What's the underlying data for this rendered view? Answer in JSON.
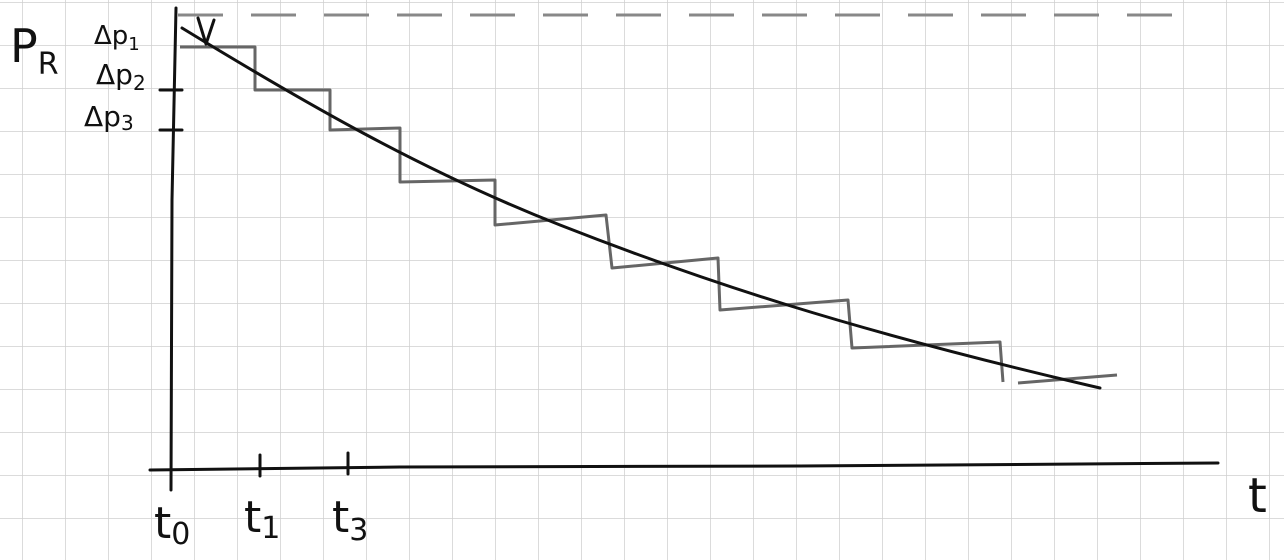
{
  "diagram": {
    "y_axis_label": {
      "main": "P",
      "sub": "R"
    },
    "step_labels": [
      {
        "main": "Δp",
        "sub": "1"
      },
      {
        "main": "Δp",
        "sub": "2"
      },
      {
        "main": "Δp",
        "sub": "3"
      }
    ],
    "x_ticks": [
      {
        "main": "t",
        "sub": "0"
      },
      {
        "main": "t",
        "sub": "1"
      },
      {
        "main": "t",
        "sub": "3"
      }
    ],
    "x_axis_label": "t"
  }
}
